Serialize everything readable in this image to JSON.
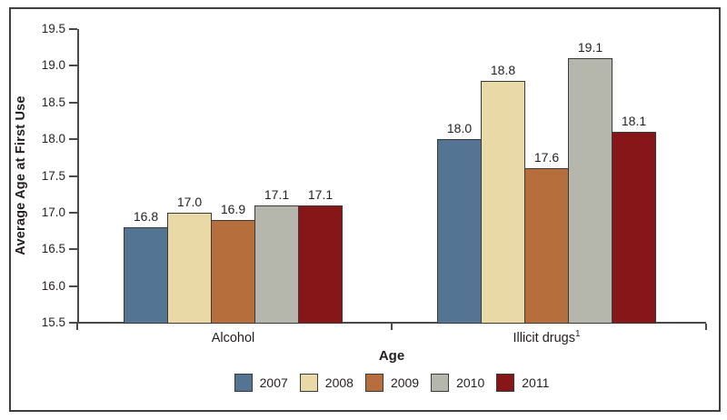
{
  "chart_data": {
    "type": "bar",
    "title": "",
    "xlabel": "Age",
    "ylabel": "Average Age at First Use",
    "ylim": [
      15.5,
      19.5
    ],
    "ytick_labels": [
      "15.5",
      "16.0",
      "16.5",
      "17.0",
      "17.5",
      "18.0",
      "18.5",
      "19.0",
      "19.5"
    ],
    "categories": [
      {
        "label": "Alcohol",
        "sup": ""
      },
      {
        "label": "Illicit drugs",
        "sup": "1"
      }
    ],
    "series": [
      {
        "name": "2007",
        "color": "#537492",
        "values": [
          16.8,
          18.0
        ],
        "value_labels": [
          "16.8",
          "18.0"
        ]
      },
      {
        "name": "2008",
        "color": "#e8d9a6",
        "values": [
          17.0,
          18.8
        ],
        "value_labels": [
          "17.0",
          "18.8"
        ]
      },
      {
        "name": "2009",
        "color": "#b66f3c",
        "values": [
          16.9,
          17.6
        ],
        "value_labels": [
          "16.9",
          "17.6"
        ]
      },
      {
        "name": "2010",
        "color": "#b5b7ad",
        "values": [
          17.1,
          19.1
        ],
        "value_labels": [
          "17.1",
          "19.1"
        ]
      },
      {
        "name": "2011",
        "color": "#871619",
        "values": [
          17.1,
          18.1
        ],
        "value_labels": [
          "17.1",
          "18.1"
        ]
      }
    ],
    "legend_position": "bottom",
    "grid": false,
    "value_labels_shown": true
  },
  "colors": {
    "axis": "#4a4a4a",
    "bar_border": "#3a3a3a",
    "frame_border": "#3f3f3f",
    "text": "#231f20",
    "background": "#ffffff"
  }
}
